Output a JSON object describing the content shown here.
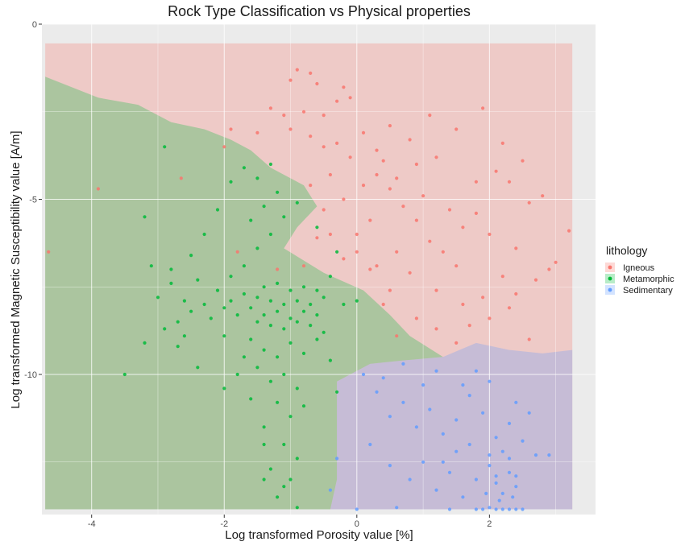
{
  "chart_data": {
    "type": "scatter",
    "title": "Rock Type Classification vs Physical properties",
    "xlabel": "Log transformed Porosity value [%]",
    "ylabel": "Log transformed Magnetic Susceptibility value [A/m]",
    "xlim": [
      -4.75,
      3.6
    ],
    "ylim": [
      -14.0,
      0.0
    ],
    "x_ticks": [
      -4,
      -2,
      0,
      2
    ],
    "y_ticks": [
      0,
      -5,
      -10
    ],
    "grid": true,
    "background": "panel-grey",
    "legend": {
      "title": "lithology",
      "placement": "right",
      "entries": [
        "Igneous",
        "Metamorphic",
        "Sedimentary"
      ]
    },
    "colors": {
      "Igneous": "#F8766D",
      "Metamorphic": "#00BA38",
      "Sedimentary": "#619CFF",
      "panel": "#EBEBEB"
    },
    "decision_regions": {
      "x_range": [
        -4.7,
        3.25
      ],
      "y_range": [
        -13.85,
        -0.55
      ],
      "boundaries": [
        {
          "between": [
            "Metamorphic",
            "Igneous"
          ],
          "points": [
            [
              -4.7,
              -1.5
            ],
            [
              -4.3,
              -1.8
            ],
            [
              -3.9,
              -2.1
            ],
            [
              -3.3,
              -2.3
            ],
            [
              -2.8,
              -2.8
            ],
            [
              -2.3,
              -3.0
            ],
            [
              -1.9,
              -3.3
            ],
            [
              -1.6,
              -3.6
            ],
            [
              -1.3,
              -4.1
            ],
            [
              -0.8,
              -4.6
            ],
            [
              -0.6,
              -5.2
            ],
            [
              -0.9,
              -5.8
            ],
            [
              -1.1,
              -6.4
            ],
            [
              -0.5,
              -7.1
            ],
            [
              0.1,
              -7.6
            ],
            [
              0.5,
              -8.3
            ],
            [
              0.8,
              -8.9
            ],
            [
              1.3,
              -9.5
            ]
          ]
        },
        {
          "between": [
            "Metamorphic",
            "Sedimentary"
          ],
          "points": [
            [
              1.3,
              -9.5
            ],
            [
              0.7,
              -9.6
            ],
            [
              0.2,
              -9.7
            ],
            [
              -0.3,
              -10.2
            ],
            [
              -0.3,
              -11.0
            ],
            [
              -0.3,
              -12.0
            ],
            [
              -0.3,
              -13.0
            ],
            [
              -0.4,
              -13.85
            ]
          ]
        },
        {
          "between": [
            "Sedimentary",
            "Igneous"
          ],
          "points": [
            [
              1.3,
              -9.5
            ],
            [
              1.8,
              -9.1
            ],
            [
              2.3,
              -9.3
            ],
            [
              2.8,
              -9.4
            ],
            [
              3.25,
              -9.3
            ]
          ]
        }
      ]
    },
    "series": [
      {
        "name": "Igneous",
        "points": [
          [
            -1.0,
            -1.6
          ],
          [
            -0.9,
            -1.3
          ],
          [
            -0.7,
            -1.4
          ],
          [
            -0.6,
            -1.7
          ],
          [
            -0.2,
            -1.8
          ],
          [
            -0.3,
            -2.2
          ],
          [
            -1.3,
            -2.4
          ],
          [
            -1.1,
            -2.6
          ],
          [
            -0.8,
            -2.5
          ],
          [
            -1.0,
            -3.0
          ],
          [
            -1.5,
            -3.1
          ],
          [
            -1.9,
            -3.0
          ],
          [
            -0.7,
            -3.2
          ],
          [
            -0.5,
            -3.5
          ],
          [
            -0.3,
            -3.4
          ],
          [
            0.1,
            -3.1
          ],
          [
            0.3,
            -3.6
          ],
          [
            0.5,
            -2.9
          ],
          [
            0.8,
            -3.3
          ],
          [
            1.1,
            -2.6
          ],
          [
            1.5,
            -3.0
          ],
          [
            1.9,
            -2.4
          ],
          [
            2.2,
            -3.4
          ],
          [
            2.1,
            -4.2
          ],
          [
            1.8,
            -4.5
          ],
          [
            2.3,
            -4.5
          ],
          [
            2.5,
            -3.9
          ],
          [
            2.8,
            -4.9
          ],
          [
            3.2,
            -5.9
          ],
          [
            3.0,
            -6.8
          ],
          [
            2.7,
            -7.3
          ],
          [
            2.4,
            -7.7
          ],
          [
            2.2,
            -7.2
          ],
          [
            1.9,
            -7.8
          ],
          [
            1.7,
            -8.6
          ],
          [
            1.5,
            -9.1
          ],
          [
            1.2,
            -8.7
          ],
          [
            0.9,
            -8.4
          ],
          [
            0.6,
            -8.9
          ],
          [
            0.5,
            -7.6
          ],
          [
            0.2,
            -7.0
          ],
          [
            0.0,
            -6.5
          ],
          [
            -0.2,
            -6.7
          ],
          [
            -0.4,
            -6.0
          ],
          [
            -0.6,
            -6.1
          ],
          [
            -0.8,
            -6.9
          ],
          [
            -0.5,
            -5.3
          ],
          [
            -0.2,
            -5.0
          ],
          [
            0.1,
            -4.6
          ],
          [
            0.3,
            -4.3
          ],
          [
            0.5,
            -4.7
          ],
          [
            0.7,
            -5.2
          ],
          [
            0.9,
            -5.6
          ],
          [
            1.1,
            -6.2
          ],
          [
            1.3,
            -6.5
          ],
          [
            1.5,
            -6.9
          ],
          [
            1.8,
            -5.4
          ],
          [
            2.0,
            -6.0
          ],
          [
            2.4,
            -6.4
          ],
          [
            2.6,
            -5.1
          ],
          [
            0.2,
            -5.6
          ],
          [
            0.0,
            -6.0
          ],
          [
            -0.4,
            -4.3
          ],
          [
            -0.7,
            -4.6
          ],
          [
            -0.1,
            -3.8
          ],
          [
            0.4,
            -3.9
          ],
          [
            0.6,
            -4.4
          ],
          [
            1.0,
            -4.9
          ],
          [
            1.4,
            -5.3
          ],
          [
            1.6,
            -5.8
          ],
          [
            2.9,
            -7.0
          ],
          [
            2.3,
            -8.1
          ],
          [
            1.6,
            -8.0
          ],
          [
            1.2,
            -7.6
          ],
          [
            0.8,
            -7.1
          ],
          [
            0.6,
            -6.5
          ],
          [
            0.3,
            -6.9
          ],
          [
            -4.65,
            -6.5
          ],
          [
            -3.9,
            -4.7
          ],
          [
            -2.65,
            -4.4
          ],
          [
            -2.0,
            -3.5
          ],
          [
            -1.8,
            -6.5
          ],
          [
            -0.5,
            -2.6
          ],
          [
            -0.1,
            -2.1
          ],
          [
            0.9,
            -4.0
          ],
          [
            1.2,
            -3.8
          ],
          [
            2.0,
            -8.4
          ],
          [
            2.6,
            -9.0
          ],
          [
            0.4,
            -8.0
          ],
          [
            -1.2,
            -7.0
          ]
        ]
      },
      {
        "name": "Metamorphic",
        "points": [
          [
            -1.6,
            -8.1
          ],
          [
            -1.5,
            -7.8
          ],
          [
            -1.4,
            -8.3
          ],
          [
            -1.3,
            -7.9
          ],
          [
            -1.2,
            -8.2
          ],
          [
            -1.1,
            -8.0
          ],
          [
            -1.0,
            -8.4
          ],
          [
            -0.9,
            -7.9
          ],
          [
            -0.8,
            -8.2
          ],
          [
            -0.7,
            -8.0
          ],
          [
            -0.6,
            -8.3
          ],
          [
            -0.5,
            -7.8
          ],
          [
            -1.5,
            -8.5
          ],
          [
            -1.3,
            -8.6
          ],
          [
            -1.1,
            -8.7
          ],
          [
            -0.9,
            -8.5
          ],
          [
            -0.7,
            -8.6
          ],
          [
            -1.4,
            -7.5
          ],
          [
            -1.2,
            -7.4
          ],
          [
            -1.0,
            -7.6
          ],
          [
            -0.8,
            -7.5
          ],
          [
            -0.6,
            -7.6
          ],
          [
            -1.7,
            -7.7
          ],
          [
            -1.8,
            -8.3
          ],
          [
            -1.9,
            -7.9
          ],
          [
            -2.0,
            -8.1
          ],
          [
            -2.1,
            -7.6
          ],
          [
            -2.2,
            -8.4
          ],
          [
            -2.3,
            -8.0
          ],
          [
            -2.4,
            -7.3
          ],
          [
            -2.5,
            -8.2
          ],
          [
            -2.6,
            -7.9
          ],
          [
            -2.7,
            -8.5
          ],
          [
            -2.8,
            -7.4
          ],
          [
            -2.9,
            -8.7
          ],
          [
            -3.0,
            -7.8
          ],
          [
            -1.6,
            -9.0
          ],
          [
            -1.4,
            -9.3
          ],
          [
            -1.2,
            -9.5
          ],
          [
            -1.0,
            -9.1
          ],
          [
            -0.8,
            -9.4
          ],
          [
            -0.6,
            -9.0
          ],
          [
            -1.5,
            -9.8
          ],
          [
            -1.3,
            -10.2
          ],
          [
            -1.1,
            -10.0
          ],
          [
            -0.9,
            -10.4
          ],
          [
            -1.2,
            -10.8
          ],
          [
            -1.0,
            -11.2
          ],
          [
            -0.8,
            -10.9
          ],
          [
            -1.4,
            -11.5
          ],
          [
            -1.1,
            -12.0
          ],
          [
            -0.9,
            -12.4
          ],
          [
            -1.3,
            -12.7
          ],
          [
            -1.0,
            -13.0
          ],
          [
            -1.2,
            -13.5
          ],
          [
            -0.9,
            -13.8
          ],
          [
            -1.7,
            -6.9
          ],
          [
            -1.5,
            -6.4
          ],
          [
            -1.3,
            -6.0
          ],
          [
            -1.1,
            -5.5
          ],
          [
            -0.9,
            -5.1
          ],
          [
            -1.6,
            -5.6
          ],
          [
            -1.4,
            -5.2
          ],
          [
            -1.2,
            -4.8
          ],
          [
            -1.5,
            -4.4
          ],
          [
            -1.3,
            -4.0
          ],
          [
            -1.7,
            -4.1
          ],
          [
            -1.9,
            -4.5
          ],
          [
            -2.1,
            -5.3
          ],
          [
            -2.3,
            -6.0
          ],
          [
            -2.5,
            -6.6
          ],
          [
            -2.8,
            -7.0
          ],
          [
            -3.1,
            -6.9
          ],
          [
            -2.7,
            -9.2
          ],
          [
            -2.4,
            -9.8
          ],
          [
            -2.0,
            -10.4
          ],
          [
            -1.8,
            -10.0
          ],
          [
            -2.6,
            -8.9
          ],
          [
            -3.5,
            -10.0
          ],
          [
            -3.2,
            -9.1
          ],
          [
            -2.9,
            -3.5
          ],
          [
            -3.2,
            -5.5
          ],
          [
            -0.4,
            -9.6
          ],
          [
            -0.3,
            -10.5
          ],
          [
            -0.5,
            -8.8
          ],
          [
            -0.4,
            -7.2
          ],
          [
            -0.2,
            -8.0
          ],
          [
            0.0,
            -7.9
          ],
          [
            -0.3,
            -6.5
          ],
          [
            -0.6,
            -5.8
          ],
          [
            -1.9,
            -7.2
          ],
          [
            -2.0,
            -8.9
          ],
          [
            -1.7,
            -9.5
          ],
          [
            -1.6,
            -10.7
          ],
          [
            -1.4,
            -13.0
          ],
          [
            -1.1,
            -13.2
          ],
          [
            -1.4,
            -12.0
          ]
        ]
      },
      {
        "name": "Sedimentary",
        "points": [
          [
            0.1,
            -10.0
          ],
          [
            0.3,
            -10.5
          ],
          [
            0.5,
            -11.2
          ],
          [
            0.7,
            -10.8
          ],
          [
            0.9,
            -11.5
          ],
          [
            1.1,
            -11.0
          ],
          [
            1.3,
            -11.7
          ],
          [
            1.5,
            -11.3
          ],
          [
            1.7,
            -10.6
          ],
          [
            1.9,
            -11.1
          ],
          [
            2.1,
            -11.8
          ],
          [
            2.3,
            -11.4
          ],
          [
            2.5,
            -11.9
          ],
          [
            2.7,
            -12.3
          ],
          [
            0.2,
            -12.0
          ],
          [
            0.5,
            -12.6
          ],
          [
            0.8,
            -13.0
          ],
          [
            1.0,
            -12.5
          ],
          [
            1.2,
            -13.3
          ],
          [
            1.4,
            -12.8
          ],
          [
            1.6,
            -13.5
          ],
          [
            1.8,
            -13.0
          ],
          [
            2.0,
            -12.6
          ],
          [
            2.1,
            -13.1
          ],
          [
            2.2,
            -13.4
          ],
          [
            2.3,
            -12.8
          ],
          [
            2.4,
            -13.2
          ],
          [
            2.0,
            -13.8
          ],
          [
            2.1,
            -13.85
          ],
          [
            2.2,
            -13.85
          ],
          [
            2.3,
            -13.85
          ],
          [
            2.4,
            -13.85
          ],
          [
            2.5,
            -13.85
          ],
          [
            1.9,
            -13.85
          ],
          [
            1.8,
            -13.85
          ],
          [
            1.4,
            -13.85
          ],
          [
            2.2,
            -12.2
          ],
          [
            2.3,
            -12.4
          ],
          [
            2.1,
            -12.9
          ],
          [
            2.0,
            -12.3
          ],
          [
            2.4,
            -12.9
          ],
          [
            2.35,
            -13.5
          ],
          [
            2.15,
            -13.6
          ],
          [
            1.95,
            -13.4
          ],
          [
            1.7,
            -12.0
          ],
          [
            1.5,
            -12.2
          ],
          [
            1.3,
            -12.5
          ],
          [
            0.6,
            -13.8
          ],
          [
            -0.3,
            -12.4
          ],
          [
            -0.4,
            -13.3
          ],
          [
            2.6,
            -11.1
          ],
          [
            2.9,
            -12.3
          ],
          [
            2.4,
            -10.8
          ],
          [
            2.0,
            -10.2
          ],
          [
            1.8,
            -9.9
          ],
          [
            1.6,
            -10.3
          ],
          [
            0.4,
            -10.1
          ],
          [
            1.0,
            -10.3
          ],
          [
            1.2,
            -9.9
          ],
          [
            0.7,
            -9.7
          ],
          [
            0.0,
            -13.85
          ]
        ]
      }
    ]
  }
}
